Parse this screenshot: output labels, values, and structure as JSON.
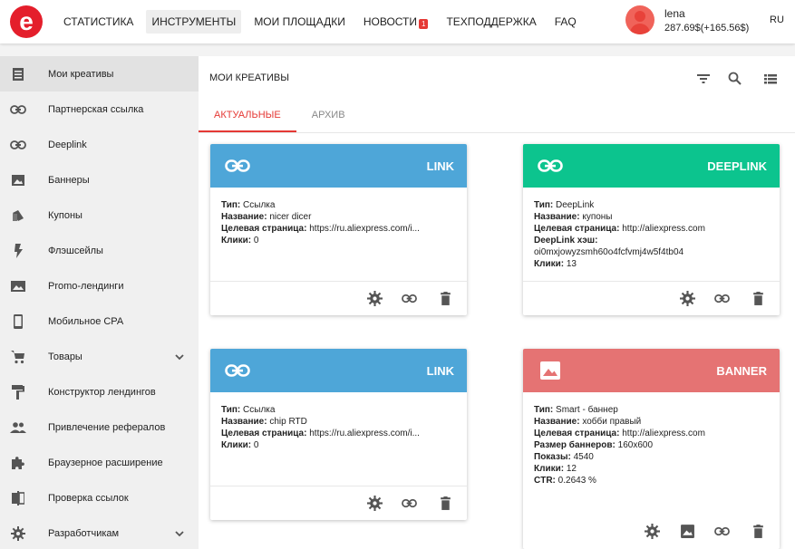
{
  "header": {
    "logo": "e",
    "nav": [
      {
        "label": "СТАТИСТИКА"
      },
      {
        "label": "ИНСТРУМЕНТЫ"
      },
      {
        "label": "МОИ ПЛОЩАДКИ"
      },
      {
        "label": "НОВОСТИ",
        "badge": "1"
      },
      {
        "label": "ТЕХПОДДЕРЖКА"
      },
      {
        "label": "FAQ"
      }
    ],
    "user": {
      "name": "lena",
      "balance": "287.69$(+165.56$)"
    },
    "lang": "RU"
  },
  "sidebar": {
    "items": [
      {
        "label": "Мои креативы",
        "icon": "list-icon"
      },
      {
        "label": "Партнерская ссылка",
        "icon": "link-icon"
      },
      {
        "label": "Deeplink",
        "icon": "link-icon"
      },
      {
        "label": "Баннеры",
        "icon": "image-icon"
      },
      {
        "label": "Купоны",
        "icon": "ticket-icon"
      },
      {
        "label": "Флэшсейлы",
        "icon": "flash-icon"
      },
      {
        "label": "Promo-лендинги",
        "icon": "landscape-icon"
      },
      {
        "label": "Мобильное CPA",
        "icon": "phone-icon"
      },
      {
        "label": "Товары",
        "icon": "cart-icon"
      },
      {
        "label": "Конструктор лендингов",
        "icon": "paint-roller-icon"
      },
      {
        "label": "Привлечение рефералов",
        "icon": "people-icon"
      },
      {
        "label": "Браузерное расширение",
        "icon": "puzzle-icon"
      },
      {
        "label": "Проверка ссылок",
        "icon": "compare-icon"
      },
      {
        "label": "Разработчикам",
        "icon": "gear-icon"
      }
    ]
  },
  "main": {
    "title": "МОИ КРЕАТИВЫ",
    "tabs": [
      {
        "label": "АКТУАЛЬНЫЕ"
      },
      {
        "label": "АРХИВ"
      }
    ],
    "cards": [
      {
        "type": "LINK",
        "color": "#4ea6d8",
        "rows": [
          {
            "k": "Тип:",
            "v": " Ссылка"
          },
          {
            "k": "Название:",
            "v": " nicer dicer"
          },
          {
            "k": "Целевая страница:",
            "v": " https://ru.aliexpress.com/i..."
          },
          {
            "k": "Клики:",
            "v": " 0"
          }
        ]
      },
      {
        "type": "DEEPLINK",
        "color": "#0cc48e",
        "rows": [
          {
            "k": "Тип:",
            "v": " DeepLink"
          },
          {
            "k": "Название:",
            "v": " купоны"
          },
          {
            "k": "Целевая страница:",
            "v": " http://aliexpress.com"
          },
          {
            "k": "DeepLink хэш:",
            "v": ""
          },
          {
            "k": "",
            "v": "oi0mxjowyzsmh60o4fcfvmj4w5f4tb04"
          },
          {
            "k": "Клики:",
            "v": " 13"
          }
        ]
      },
      {
        "type": "LINK",
        "color": "#4ea6d8",
        "rows": [
          {
            "k": "Тип:",
            "v": " Ссылка"
          },
          {
            "k": "Название:",
            "v": " chip RTD"
          },
          {
            "k": "Целевая страница:",
            "v": " https://ru.aliexpress.com/i..."
          },
          {
            "k": "Клики:",
            "v": " 0"
          }
        ]
      },
      {
        "type": "BANNER",
        "color": "#e57373",
        "rows": [
          {
            "k": "Тип:",
            "v": " Smart - баннер"
          },
          {
            "k": "Название:",
            "v": " хобби правый"
          },
          {
            "k": "Целевая страница:",
            "v": " http://aliexpress.com"
          },
          {
            "k": "Размер баннеров:",
            "v": " 160x600"
          },
          {
            "k": "Показы:",
            "v": " 4540"
          },
          {
            "k": "Клики:",
            "v": " 12"
          },
          {
            "k": "CTR:",
            "v": " 0.2643 %"
          }
        ]
      }
    ]
  },
  "colors": {
    "accent": "#e53935",
    "link": "#4ea6d8",
    "deeplink": "#0cc48e",
    "banner": "#e57373"
  }
}
